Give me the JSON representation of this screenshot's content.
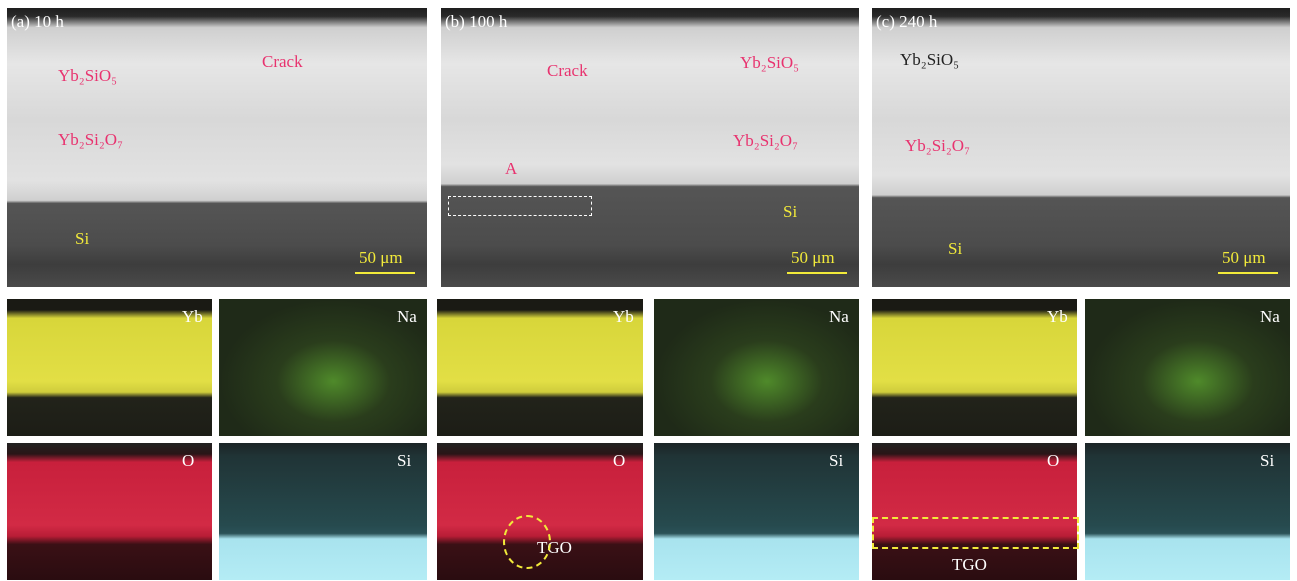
{
  "panels": [
    {
      "label": "(a) 10 h",
      "scale_bar": "50 μm",
      "annotations": [
        "Crack",
        "Yb₂SiO₅",
        "Yb₂Si₂O₇",
        "Si"
      ],
      "maps": [
        "Yb",
        "Na",
        "O",
        "Si"
      ]
    },
    {
      "label": "(b) 100 h",
      "scale_bar": "50 μm",
      "annotations": [
        "Crack",
        "Yb₂SiO₅",
        "Yb₂Si₂O₇",
        "A",
        "Si"
      ],
      "maps": [
        "Yb",
        "Na",
        "O",
        "Si"
      ],
      "map_note": "TGO"
    },
    {
      "label": "(c) 240 h",
      "scale_bar": "50 μm",
      "annotations": [
        "Yb₂SiO₅",
        "Yb₂Si₂O₇",
        "Si"
      ],
      "maps": [
        "Yb",
        "Na",
        "O",
        "Si"
      ],
      "map_note": "TGO"
    }
  ]
}
